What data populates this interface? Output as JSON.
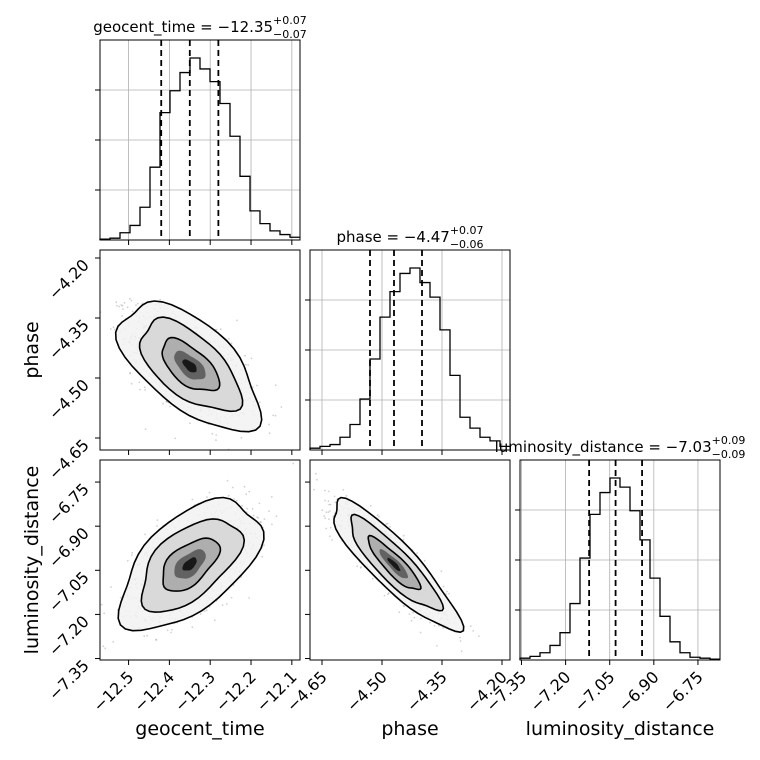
{
  "chart_data": {
    "type": "corner",
    "parameters": [
      "geocent_time",
      "phase",
      "luminosity_distance"
    ],
    "axis_labels": {
      "geocent_time": "geocent_time",
      "phase": "phase",
      "luminosity_distance": "luminosity_distance"
    },
    "titles": {
      "geocent_time": {
        "prefix": "geocent_time = ",
        "value": "−12.35",
        "plus": "+0.07",
        "minus": "−0.07"
      },
      "phase": {
        "prefix": "phase = ",
        "value": "−4.47",
        "plus": "+0.07",
        "minus": "−0.06"
      },
      "luminosity_distance": {
        "prefix": "luminosity_distance = ",
        "value": "−7.03",
        "plus": "+0.09",
        "minus": "−0.09"
      }
    },
    "ranges": {
      "geocent_time": [
        -12.57,
        -12.08
      ],
      "phase": [
        -4.68,
        -4.18
      ],
      "luminosity_distance": [
        -7.355,
        -6.675
      ]
    },
    "ticks": {
      "geocent_time": {
        "values": [
          -12.5,
          -12.4,
          -12.3,
          -12.2,
          -12.1
        ],
        "labels": [
          "−12.5",
          "−12.4",
          "−12.3",
          "−12.2",
          "−12.1"
        ]
      },
      "phase": {
        "values": [
          -4.65,
          -4.5,
          -4.35,
          -4.2
        ],
        "labels": [
          "−4.65",
          "−4.50",
          "−4.35",
          "−4.20"
        ]
      },
      "luminosity_distance": {
        "values": [
          -7.35,
          -7.2,
          -7.05,
          -6.9,
          -6.75
        ],
        "labels": [
          "−7.35",
          "−7.20",
          "−7.05",
          "−6.90",
          "−6.75"
        ]
      }
    },
    "quantiles": {
      "geocent_time": [
        -12.42,
        -12.35,
        -12.28
      ],
      "phase": [
        -4.53,
        -4.47,
        -4.4
      ],
      "luminosity_distance": [
        -7.12,
        -7.03,
        -6.94
      ]
    },
    "histograms": {
      "geocent_time": {
        "edges_start": -12.57,
        "bin_width": 0.0245,
        "counts": [
          0.005,
          0.01,
          0.04,
          0.08,
          0.18,
          0.4,
          0.7,
          0.82,
          0.92,
          1.0,
          0.94,
          0.87,
          0.75,
          0.57,
          0.35,
          0.16,
          0.09,
          0.05,
          0.03,
          0.015
        ]
      },
      "phase": {
        "edges_start": -4.68,
        "bin_width": 0.025,
        "counts": [
          0.01,
          0.02,
          0.03,
          0.07,
          0.14,
          0.28,
          0.5,
          0.73,
          0.87,
          0.97,
          1.0,
          0.92,
          0.84,
          0.66,
          0.41,
          0.18,
          0.12,
          0.07,
          0.05,
          0.02
        ]
      },
      "luminosity_distance": {
        "edges_start": -7.355,
        "bin_width": 0.034,
        "counts": [
          0.01,
          0.02,
          0.04,
          0.08,
          0.15,
          0.31,
          0.56,
          0.8,
          0.92,
          1.0,
          0.95,
          0.82,
          0.66,
          0.45,
          0.24,
          0.1,
          0.04,
          0.015,
          0.01,
          0.005
        ]
      }
    },
    "correlations": {
      "phase|geocent_time": -0.6,
      "luminosity_distance|geocent_time": 0.55,
      "luminosity_distance|phase": -0.88
    },
    "grid": true,
    "legend": "none"
  },
  "colors": {
    "line": "#000000",
    "grid": "#b0b0b0",
    "scatter": "#7a7a7a"
  }
}
